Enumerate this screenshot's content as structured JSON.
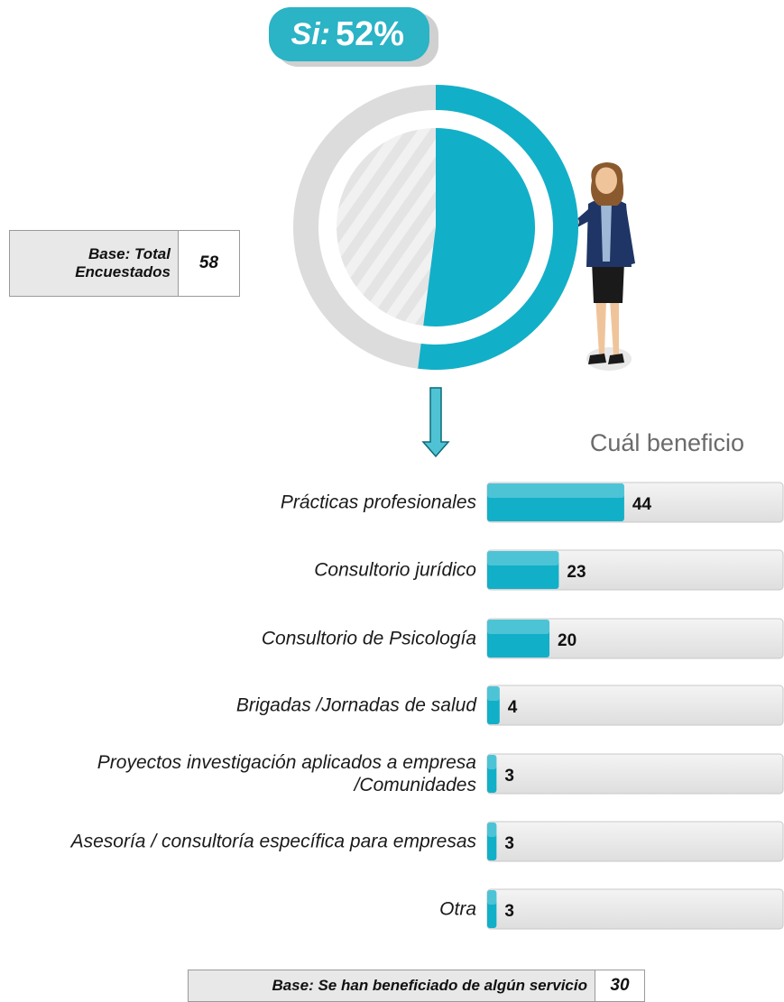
{
  "chart_data": [
    {
      "type": "pie",
      "categories": [
        "Si:"
      ],
      "values": [
        52
      ],
      "value_labels": [
        "52%"
      ],
      "color": "#12afc8",
      "rest_color": "#dcdcdc"
    },
    {
      "type": "bar",
      "title": "Cuál beneficio",
      "categories": [
        "Prácticas profesionales",
        "Consultorio jurídico",
        "Consultorio de Psicología",
        "Brigadas /Jornadas de salud",
        "Proyectos investigación aplicados a empresa /Comunidades",
        "Asesoría / consultoría específica para empresas",
        "Otra"
      ],
      "values": [
        44,
        23,
        20,
        4,
        3,
        3,
        3
      ],
      "xlim": [
        0,
        95
      ],
      "color": "#12afc8"
    }
  ],
  "base_notes": [
    {
      "label": "Base: Total Encuestados",
      "value": 58
    },
    {
      "label": "Base: Se han beneficiado de algún servicio",
      "value": 30
    }
  ]
}
